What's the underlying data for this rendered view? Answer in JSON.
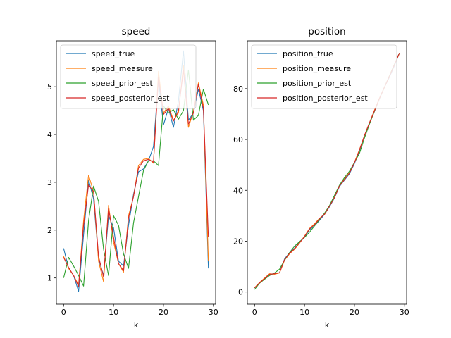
{
  "chart_data": [
    {
      "type": "line",
      "title": "speed",
      "xlabel": "k",
      "ylabel": "",
      "xlim": [
        -1.45,
        30.45
      ],
      "ylim": [
        0.45,
        5.96
      ],
      "xticks": [
        0,
        10,
        20,
        30
      ],
      "yticks": [
        1,
        2,
        3,
        4,
        5
      ],
      "legend": "top-left",
      "x": [
        0,
        1,
        2,
        3,
        4,
        5,
        6,
        7,
        8,
        9,
        10,
        11,
        12,
        13,
        14,
        15,
        16,
        17,
        18,
        19,
        20,
        21,
        22,
        23,
        24,
        25,
        26,
        27,
        28,
        29
      ],
      "series": [
        {
          "name": "speed_true",
          "color": "#1f77b4",
          "values": [
            1.62,
            1.2,
            1.05,
            0.72,
            1.9,
            3.05,
            2.65,
            1.4,
            1.05,
            2.3,
            2.05,
            1.35,
            1.25,
            2.1,
            2.75,
            3.22,
            3.28,
            3.45,
            3.75,
            5.15,
            4.2,
            4.55,
            4.15,
            4.7,
            5.75,
            4.3,
            4.45,
            4.95,
            4.5,
            1.2
          ]
        },
        {
          "name": "speed_measure",
          "color": "#ff7f0e",
          "values": [
            1.45,
            1.2,
            1.05,
            0.85,
            2.2,
            3.15,
            2.8,
            1.35,
            0.92,
            2.52,
            1.75,
            1.3,
            1.12,
            2.3,
            2.7,
            3.35,
            3.48,
            3.5,
            3.4,
            5.32,
            4.45,
            4.6,
            4.3,
            4.45,
            5.45,
            4.15,
            4.48,
            5.08,
            4.62,
            1.35
          ]
        },
        {
          "name": "speed_prior_est",
          "color": "#2ca02c",
          "values": [
            1.0,
            1.43,
            1.25,
            1.05,
            0.83,
            2.2,
            2.92,
            2.6,
            1.6,
            1.05,
            2.3,
            2.1,
            1.5,
            1.2,
            2.15,
            2.7,
            3.25,
            3.45,
            3.45,
            3.35,
            4.6,
            4.45,
            4.52,
            4.32,
            4.5,
            5.35,
            4.3,
            4.4,
            4.95,
            4.62
          ]
        },
        {
          "name": "speed_posterior_est",
          "color": "#d62728",
          "values": [
            1.43,
            1.22,
            1.05,
            0.82,
            2.1,
            2.95,
            2.8,
            1.45,
            1.02,
            2.45,
            1.85,
            1.3,
            1.15,
            2.25,
            2.7,
            3.3,
            3.45,
            3.48,
            3.42,
            5.2,
            4.42,
            4.55,
            4.28,
            4.5,
            5.35,
            4.22,
            4.45,
            5.05,
            4.55,
            1.85
          ]
        }
      ]
    },
    {
      "type": "line",
      "title": "position",
      "xlabel": "k",
      "ylabel": "",
      "xlim": [
        -1.45,
        30.45
      ],
      "ylim": [
        -4.8,
        98.8
      ],
      "xticks": [
        0,
        10,
        20,
        30
      ],
      "yticks": [
        0,
        20,
        40,
        60,
        80
      ],
      "legend": "top-left",
      "x": [
        0,
        1,
        2,
        3,
        4,
        5,
        6,
        7,
        8,
        9,
        10,
        11,
        12,
        13,
        14,
        15,
        16,
        17,
        18,
        19,
        20,
        21,
        22,
        23,
        24,
        25,
        26,
        27,
        28,
        29
      ],
      "series": [
        {
          "name": "position_true",
          "color": "#1f77b4",
          "values": [
            1.6,
            3.5,
            5.2,
            6.9,
            7.3,
            7.6,
            13.0,
            15.5,
            17.2,
            19.5,
            21.5,
            24.5,
            26.0,
            28.2,
            30.5,
            33.5,
            37.0,
            41.5,
            44.0,
            46.5,
            50.5,
            55.5,
            61.5,
            66.5,
            71.0,
            76.0,
            80.5,
            84.5,
            89.0,
            94.0
          ]
        },
        {
          "name": "position_measure",
          "color": "#ff7f0e",
          "values": [
            1.7,
            3.8,
            5.5,
            7.2,
            7.0,
            7.5,
            12.5,
            15.0,
            16.8,
            19.2,
            22.0,
            25.0,
            26.8,
            29.0,
            30.5,
            33.8,
            37.2,
            41.8,
            44.5,
            47.0,
            51.0,
            56.0,
            61.5,
            66.5,
            71.5,
            76.2,
            80.5,
            85.0,
            89.5,
            93.8
          ]
        },
        {
          "name": "position_prior_est",
          "color": "#2ca02c",
          "values": [
            1.0,
            3.5,
            5.0,
            6.5,
            7.5,
            9.0,
            12.5,
            15.5,
            18.0,
            19.8,
            21.5,
            23.5,
            26.0,
            28.5,
            31.0,
            34.0,
            38.0,
            42.0,
            45.0,
            47.5,
            51.0,
            54.5,
            60.5,
            66.0,
            71.0,
            76.0,
            80.5,
            85.0,
            89.5,
            94.0
          ]
        },
        {
          "name": "position_posterior_est",
          "color": "#d62728",
          "values": [
            1.6,
            3.6,
            5.3,
            7.0,
            7.2,
            7.6,
            12.8,
            15.2,
            17.0,
            19.4,
            21.8,
            24.8,
            26.5,
            28.8,
            30.6,
            33.7,
            37.2,
            41.7,
            44.2,
            46.8,
            50.8,
            55.8,
            61.5,
            66.5,
            71.2,
            76.1,
            80.5,
            84.8,
            89.3,
            94.0
          ]
        }
      ]
    }
  ]
}
